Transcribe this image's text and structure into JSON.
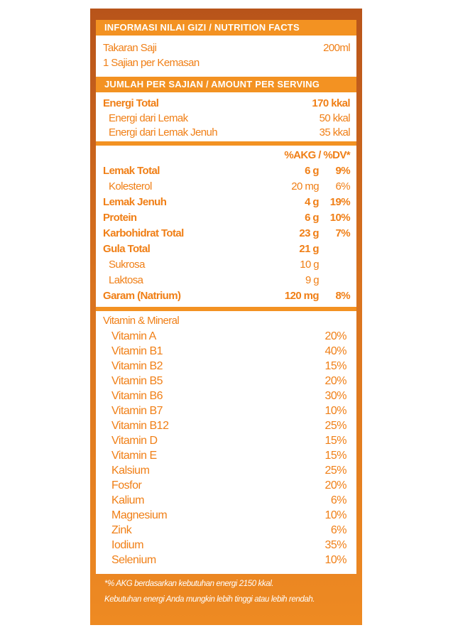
{
  "header": {
    "nutrition_title": "INFORMASI NILAI GIZI / NUTRITION FACTS",
    "serving_title": "JUMLAH PER SAJIAN / AMOUNT PER SERVING"
  },
  "serving": {
    "size_label": "Takaran Saji",
    "size_value": "200ml",
    "per_pack": "1 Sajian per Kemasan"
  },
  "energy": [
    {
      "name": "Energi Total",
      "value": "170 kkal"
    },
    {
      "name": "Energi dari Lemak",
      "value": "50 kkal"
    },
    {
      "name": "Energi dari Lemak Jenuh",
      "value": "35 kkal"
    }
  ],
  "nutrients_header": "%AKG / %DV*",
  "nutrients": [
    {
      "name": "Lemak Total",
      "amount": "6 g",
      "pct": "9%"
    },
    {
      "name": "Kolesterol",
      "amount": "20 mg",
      "pct": "6%"
    },
    {
      "name": "Lemak Jenuh",
      "amount": "4 g",
      "pct": "19%"
    },
    {
      "name": "Protein",
      "amount": "6 g",
      "pct": "10%"
    },
    {
      "name": "Karbohidrat Total",
      "amount": "23 g",
      "pct": "7%"
    },
    {
      "name": "Gula Total",
      "amount": "21 g",
      "pct": ""
    },
    {
      "name": "Sukrosa",
      "amount": "10 g",
      "pct": ""
    },
    {
      "name": "Laktosa",
      "amount": "9 g",
      "pct": ""
    },
    {
      "name": "Garam (Natrium)",
      "amount": "120 mg",
      "pct": "8%"
    }
  ],
  "vitamins_header": "Vitamin & Mineral",
  "vitamins": [
    {
      "name": "Vitamin A",
      "pct": "20%"
    },
    {
      "name": "Vitamin B1",
      "pct": "40%"
    },
    {
      "name": "Vitamin B2",
      "pct": "15%"
    },
    {
      "name": "Vitamin B5",
      "pct": "20%"
    },
    {
      "name": "Vitamin B6",
      "pct": "30%"
    },
    {
      "name": "Vitamin B7",
      "pct": "10%"
    },
    {
      "name": "Vitamin B12",
      "pct": "25%"
    },
    {
      "name": "Vitamin D",
      "pct": "15%"
    },
    {
      "name": "Vitamin E",
      "pct": "15%"
    },
    {
      "name": "Kalsium",
      "pct": "25%"
    },
    {
      "name": "Fosfor",
      "pct": "20%"
    },
    {
      "name": "Kalium",
      "pct": "6%"
    },
    {
      "name": "Magnesium",
      "pct": "10%"
    },
    {
      "name": "Zink",
      "pct": "6%"
    },
    {
      "name": "Iodium",
      "pct": "35%"
    },
    {
      "name": "Selenium",
      "pct": "10%"
    }
  ],
  "footnotes": [
    "*% AKG berdasarkan kebutuhan energi 2150 kkal.",
    "Kebutuhan energi Anda mungkin lebih tinggi atau lebih rendah."
  ],
  "colors": {
    "accent": "#f39222",
    "text": "#f07f16",
    "panel_dark": "#b8541a"
  }
}
